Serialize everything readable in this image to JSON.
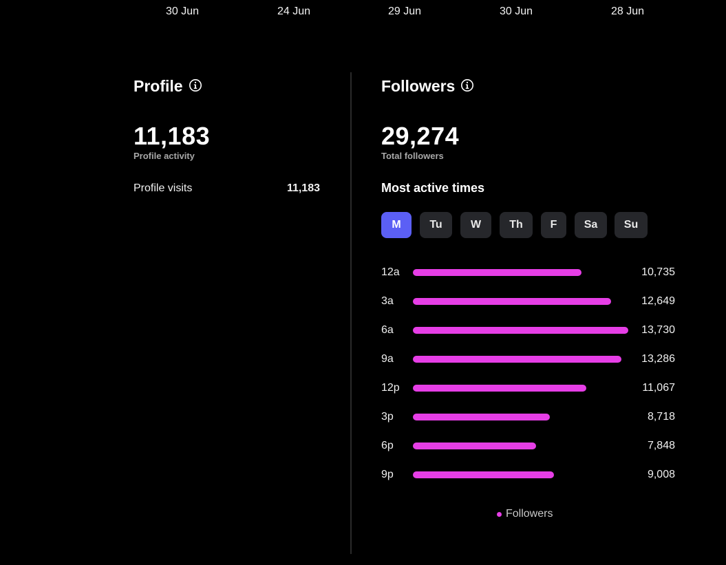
{
  "top_dates": [
    "30 Jun",
    "24 Jun",
    "29 Jun",
    "30 Jun",
    "28 Jun"
  ],
  "profile": {
    "title": "Profile",
    "activity_value": "11,183",
    "activity_label": "Profile activity",
    "visits_label": "Profile visits",
    "visits_value": "11,183"
  },
  "followers": {
    "title": "Followers",
    "total_value": "29,274",
    "total_label": "Total followers",
    "most_active_title": "Most active times",
    "days": [
      {
        "label": "M",
        "active": true
      },
      {
        "label": "Tu",
        "active": false
      },
      {
        "label": "W",
        "active": false
      },
      {
        "label": "Th",
        "active": false
      },
      {
        "label": "F",
        "active": false
      },
      {
        "label": "Sa",
        "active": false
      },
      {
        "label": "Su",
        "active": false
      }
    ],
    "legend_label": "Followers",
    "colors": {
      "bar": "#e63ee6",
      "active_tab": "#5b5ff5",
      "inactive_tab": "#26272b"
    }
  },
  "chart_data": {
    "type": "bar",
    "orientation": "horizontal",
    "categories": [
      "12a",
      "3a",
      "6a",
      "9a",
      "12p",
      "3p",
      "6p",
      "9p"
    ],
    "series": [
      {
        "name": "Followers",
        "values": [
          10735,
          12649,
          13730,
          13286,
          11067,
          8718,
          7848,
          9008
        ],
        "value_labels": [
          "10,735",
          "12,649",
          "13,730",
          "13,286",
          "11,067",
          "8,718",
          "7,848",
          "9,008"
        ]
      }
    ]
  }
}
